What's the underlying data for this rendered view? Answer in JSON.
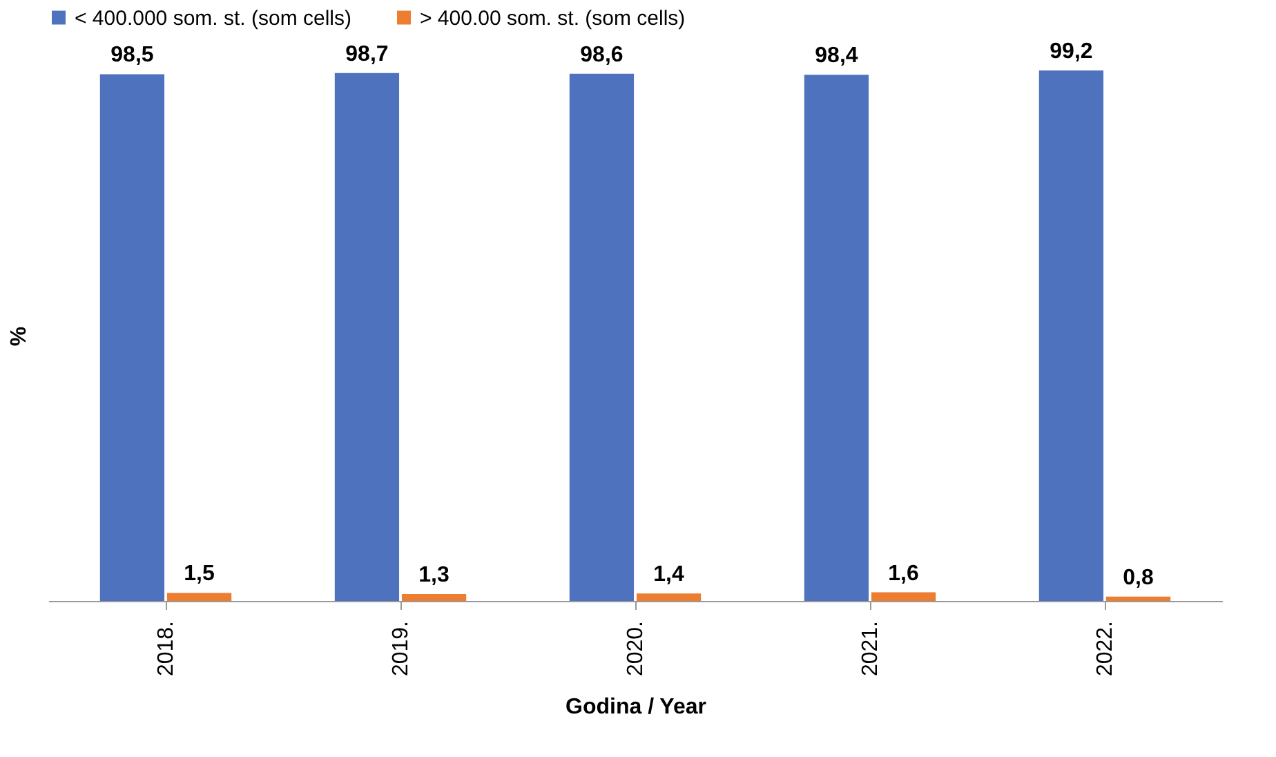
{
  "chart_data": {
    "type": "bar",
    "ylabel": "%",
    "xlabel": "Godina / Year",
    "categories": [
      "2018.",
      "2019.",
      "2020.",
      "2021.",
      "2022."
    ],
    "series": [
      {
        "name": "< 400.000 som. st. (som cells)",
        "color": "#4f72be",
        "values": [
          98.5,
          98.7,
          98.6,
          98.4,
          99.2
        ],
        "value_labels": [
          "98,5",
          "98,7",
          "98,6",
          "98,4",
          "99,2"
        ]
      },
      {
        "name": "> 400.00 som. st. (som cells)",
        "color": "#ed7d31",
        "values": [
          1.5,
          1.3,
          1.4,
          1.6,
          0.8
        ],
        "value_labels": [
          "1,5",
          "1,3",
          "1,4",
          "1,6",
          "0,8"
        ]
      }
    ],
    "legend": "top",
    "tick_labels": "x",
    "grid": false
  }
}
